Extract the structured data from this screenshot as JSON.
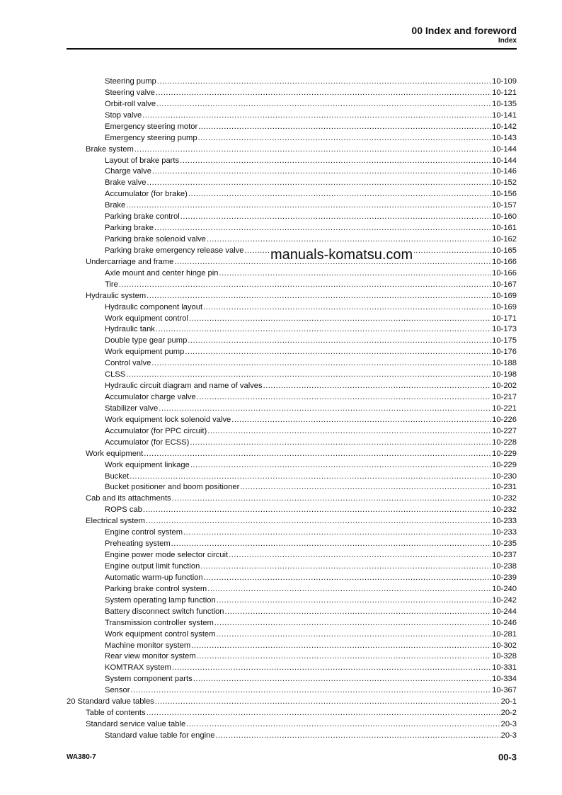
{
  "header": {
    "title": "00 Index and foreword",
    "subtitle": "Index"
  },
  "entries": [
    {
      "label": "Steering pump",
      "page": "10-109",
      "level": 2
    },
    {
      "label": "Steering valve",
      "page": "10-121",
      "level": 2
    },
    {
      "label": "Orbit-roll valve",
      "page": "10-135",
      "level": 2
    },
    {
      "label": "Stop valve",
      "page": "10-141",
      "level": 2
    },
    {
      "label": "Emergency steering motor",
      "page": "10-142",
      "level": 2
    },
    {
      "label": "Emergency steering pump",
      "page": "10-143",
      "level": 2
    },
    {
      "label": "Brake system",
      "page": "10-144",
      "level": 1
    },
    {
      "label": "Layout of brake parts",
      "page": "10-144",
      "level": 2
    },
    {
      "label": "Charge valve",
      "page": "10-146",
      "level": 2
    },
    {
      "label": "Brake valve",
      "page": "10-152",
      "level": 2
    },
    {
      "label": "Accumulator (for brake)",
      "page": "10-156",
      "level": 2
    },
    {
      "label": "Brake",
      "page": "10-157",
      "level": 2
    },
    {
      "label": "Parking brake control",
      "page": "10-160",
      "level": 2
    },
    {
      "label": "Parking brake",
      "page": "10-161",
      "level": 2
    },
    {
      "label": "Parking brake solenoid valve",
      "page": "10-162",
      "level": 2
    },
    {
      "label": "Parking brake emergency release valve",
      "page": "10-165",
      "level": 2
    },
    {
      "label": "Undercarriage and frame",
      "page": "10-166",
      "level": 1
    },
    {
      "label": "Axle mount and center hinge pin",
      "page": "10-166",
      "level": 2
    },
    {
      "label": "Tire",
      "page": "10-167",
      "level": 2
    },
    {
      "label": "Hydraulic system",
      "page": "10-169",
      "level": 1
    },
    {
      "label": "Hydraulic component layout",
      "page": "10-169",
      "level": 2
    },
    {
      "label": "Work equipment control",
      "page": "10-171",
      "level": 2
    },
    {
      "label": "Hydraulic tank",
      "page": "10-173",
      "level": 2
    },
    {
      "label": "Double type gear pump",
      "page": "10-175",
      "level": 2
    },
    {
      "label": "Work equipment pump",
      "page": "10-176",
      "level": 2
    },
    {
      "label": "Control valve",
      "page": "10-188",
      "level": 2
    },
    {
      "label": "CLSS",
      "page": "10-198",
      "level": 2
    },
    {
      "label": "Hydraulic circuit diagram and name of valves",
      "page": "10-202",
      "level": 2
    },
    {
      "label": "Accumulator charge valve",
      "page": "10-217",
      "level": 2
    },
    {
      "label": "Stabilizer valve",
      "page": "10-221",
      "level": 2
    },
    {
      "label": "Work equipment lock solenoid valve",
      "page": "10-226",
      "level": 2
    },
    {
      "label": "Accumulator (for PPC circuit)",
      "page": "10-227",
      "level": 2
    },
    {
      "label": "Accumulator (for ECSS)",
      "page": "10-228",
      "level": 2
    },
    {
      "label": "Work equipment",
      "page": "10-229",
      "level": 1
    },
    {
      "label": "Work equipment linkage",
      "page": "10-229",
      "level": 2
    },
    {
      "label": "Bucket",
      "page": "10-230",
      "level": 2
    },
    {
      "label": "Bucket positioner and boom positioner",
      "page": "10-231",
      "level": 2
    },
    {
      "label": "Cab and its attachments",
      "page": "10-232",
      "level": 1
    },
    {
      "label": "ROPS cab",
      "page": "10-232",
      "level": 2
    },
    {
      "label": "Electrical system",
      "page": "10-233",
      "level": 1
    },
    {
      "label": "Engine control system",
      "page": "10-233",
      "level": 2
    },
    {
      "label": "Preheating system",
      "page": "10-235",
      "level": 2
    },
    {
      "label": "Engine power mode selector circuit",
      "page": "10-237",
      "level": 2
    },
    {
      "label": "Engine output limit function",
      "page": "10-238",
      "level": 2
    },
    {
      "label": "Automatic warm-up function",
      "page": "10-239",
      "level": 2
    },
    {
      "label": "Parking brake control system",
      "page": "10-240",
      "level": 2
    },
    {
      "label": "System operating lamp function",
      "page": "10-242",
      "level": 2
    },
    {
      "label": "Battery disconnect switch function",
      "page": "10-244",
      "level": 2
    },
    {
      "label": "Transmission controller system",
      "page": "10-246",
      "level": 2
    },
    {
      "label": "Work equipment control system",
      "page": "10-281",
      "level": 2
    },
    {
      "label": "Machine monitor system",
      "page": "10-302",
      "level": 2
    },
    {
      "label": "Rear view monitor system",
      "page": "10-328",
      "level": 2
    },
    {
      "label": "KOMTRAX system",
      "page": "10-331",
      "level": 2
    },
    {
      "label": "System component parts",
      "page": "10-334",
      "level": 2
    },
    {
      "label": "Sensor",
      "page": "10-367",
      "level": 2
    },
    {
      "label": "20 Standard value tables",
      "page": "20-1",
      "level": 0
    },
    {
      "label": "Table of contents",
      "page": "20-2",
      "level": 1
    },
    {
      "label": "Standard service value table",
      "page": "20-3",
      "level": 1
    },
    {
      "label": "Standard value table for engine",
      "page": "20-3",
      "level": 2
    }
  ],
  "watermark": "manuals-komatsu.com",
  "footer": {
    "model": "WA380-7",
    "page": "00-3"
  }
}
